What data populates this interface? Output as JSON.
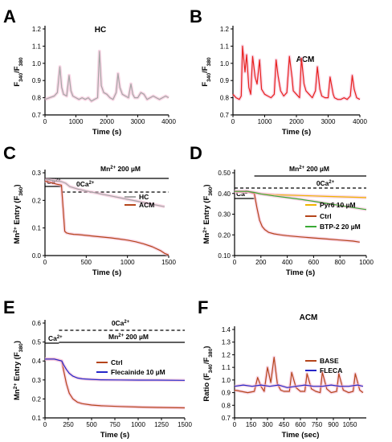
{
  "chart_data": [
    {
      "id": "A",
      "panel_label": "A",
      "type": "line",
      "title": "HC",
      "xlabel": "Time (s)",
      "ylabel": "F340/F380",
      "ylabel_parts": [
        "F",
        "340",
        "/F",
        "380"
      ],
      "xlim": [
        0,
        4000
      ],
      "ylim": [
        0.7,
        1.2
      ],
      "xticks": [
        0,
        1000,
        2000,
        3000,
        4000
      ],
      "yticks": [
        0.7,
        0.8,
        0.9,
        1.0,
        1.1,
        1.2
      ],
      "ytick_labels": [
        "0.7",
        "0.8",
        "0.9",
        "1.0",
        "1.1",
        "1.2"
      ],
      "grid": false,
      "series": [
        {
          "color": "#a6a6a6",
          "x": [
            0,
            150,
            300,
            400,
            480,
            540,
            600,
            700,
            780,
            840,
            900,
            1000,
            1100,
            1200,
            1300,
            1400,
            1500,
            1600,
            1700,
            1760,
            1820,
            1900,
            2000,
            2100,
            2200,
            2300,
            2360,
            2420,
            2500,
            2600,
            2700,
            2780,
            2840,
            2900,
            3000,
            3100,
            3200,
            3300,
            3400,
            3500,
            3600,
            3700,
            3800,
            3900,
            4000
          ],
          "y": [
            0.79,
            0.8,
            0.81,
            0.83,
            0.98,
            0.86,
            0.82,
            0.81,
            0.93,
            0.84,
            0.81,
            0.8,
            0.79,
            0.8,
            0.79,
            0.8,
            0.78,
            0.79,
            0.8,
            1.07,
            0.87,
            0.83,
            0.82,
            0.8,
            0.79,
            0.83,
            0.94,
            0.86,
            0.82,
            0.81,
            0.8,
            0.88,
            0.82,
            0.8,
            0.8,
            0.83,
            0.82,
            0.79,
            0.8,
            0.81,
            0.8,
            0.79,
            0.8,
            0.81,
            0.8
          ]
        }
      ]
    },
    {
      "id": "B",
      "panel_label": "B",
      "type": "line",
      "title": "ACM",
      "xlabel": "Time (s)",
      "ylabel": "F340/F380",
      "ylabel_parts": [
        "F",
        "340",
        "/F",
        "380"
      ],
      "xlim": [
        0,
        4000
      ],
      "ylim": [
        0.7,
        1.2
      ],
      "xticks": [
        0,
        1000,
        2000,
        3000,
        4000
      ],
      "yticks": [
        0.7,
        0.8,
        0.9,
        1.0,
        1.1,
        1.2
      ],
      "ytick_labels": [
        "0.7",
        "0.8",
        "0.9",
        "1.0",
        "1.1",
        "1.2"
      ],
      "grid": false,
      "series": [
        {
          "color": "#e8201c",
          "x": [
            0,
            100,
            200,
            260,
            300,
            380,
            430,
            500,
            560,
            620,
            700,
            760,
            840,
            900,
            1000,
            1100,
            1200,
            1300,
            1360,
            1420,
            1500,
            1600,
            1700,
            1780,
            1860,
            1900,
            2000,
            2100,
            2160,
            2240,
            2300,
            2400,
            2500,
            2600,
            2660,
            2740,
            2800,
            2900,
            3000,
            3060,
            3160,
            3200,
            3300,
            3400,
            3500,
            3600,
            3700,
            3760,
            3820,
            3900,
            4000
          ],
          "y": [
            0.82,
            0.8,
            0.79,
            0.81,
            1.1,
            0.95,
            1.05,
            0.86,
            0.82,
            1.04,
            0.92,
            0.88,
            1.02,
            0.85,
            0.82,
            0.81,
            0.8,
            0.82,
            1.02,
            0.93,
            0.84,
            0.81,
            0.83,
            1.04,
            0.92,
            0.84,
            0.82,
            0.8,
            1.03,
            0.88,
            0.84,
            0.82,
            0.8,
            0.84,
            0.98,
            0.85,
            0.81,
            0.8,
            0.8,
            0.92,
            0.82,
            0.8,
            0.79,
            0.79,
            0.8,
            0.79,
            0.81,
            0.93,
            0.85,
            0.8,
            0.79
          ]
        }
      ]
    },
    {
      "id": "C",
      "panel_label": "C",
      "type": "line",
      "title": "",
      "xlabel": "Time (s)",
      "ylabel": "Mn2+ Entry (F360)",
      "ylabel_parts": [
        "Mn",
        "2+",
        " Entry (F",
        "360",
        ")"
      ],
      "xlim": [
        0,
        1500
      ],
      "ylim": [
        0.0,
        0.3
      ],
      "xticks": [
        0,
        500,
        1000,
        1500
      ],
      "yticks": [
        0.0,
        0.1,
        0.2,
        0.3
      ],
      "ytick_labels": [
        "0.0",
        "0.1",
        "0.2",
        "0.3"
      ],
      "grid": false,
      "annotations": [
        {
          "text": "Mn2+ 200 µM",
          "parts": [
            "Mn",
            "2+",
            " 200 µM"
          ],
          "bar": [
            0,
            1500
          ],
          "style": "solid"
        },
        {
          "text": "0Ca2+",
          "parts": [
            "0Ca",
            "2+"
          ],
          "bar": [
            200,
            1500
          ],
          "style": "dashed"
        },
        {
          "text": "Ca2+",
          "parts": [
            "Ca",
            "2+"
          ],
          "bar": [
            0,
            200
          ],
          "style": "solid"
        }
      ],
      "legend_position": "right",
      "series": [
        {
          "name": "HC",
          "color": "#a6a6a6",
          "x": [
            0,
            50,
            100,
            150,
            200,
            250,
            300,
            400,
            500,
            600,
            700,
            800,
            900,
            1000,
            1100,
            1200,
            1300,
            1400,
            1450
          ],
          "y": [
            0.275,
            0.274,
            0.272,
            0.27,
            0.268,
            0.262,
            0.25,
            0.241,
            0.234,
            0.228,
            0.222,
            0.216,
            0.21,
            0.204,
            0.198,
            0.192,
            0.186,
            0.18,
            0.177
          ]
        },
        {
          "name": "ACM",
          "color": "#b5451b",
          "x": [
            0,
            50,
            100,
            150,
            200,
            220,
            240,
            260,
            300,
            350,
            400,
            500,
            600,
            700,
            800,
            900,
            1000,
            1100,
            1200,
            1300,
            1400,
            1450,
            1500
          ],
          "y": [
            0.27,
            0.266,
            0.262,
            0.258,
            0.255,
            0.17,
            0.088,
            0.082,
            0.079,
            0.077,
            0.076,
            0.073,
            0.07,
            0.067,
            0.064,
            0.06,
            0.056,
            0.05,
            0.042,
            0.032,
            0.018,
            0.008,
            0.002
          ]
        }
      ]
    },
    {
      "id": "D",
      "panel_label": "D",
      "type": "line",
      "title": "",
      "xlabel": "Time (s)",
      "ylabel": "Mn2+ Entry (F360)",
      "ylabel_parts": [
        "Mn",
        "2+",
        " Entry (F",
        "360",
        ")"
      ],
      "xlim": [
        0,
        1000
      ],
      "ylim": [
        0.1,
        0.5
      ],
      "xticks": [
        0,
        200,
        400,
        600,
        800,
        1000
      ],
      "yticks": [
        0.1,
        0.2,
        0.3,
        0.4,
        0.5
      ],
      "ytick_labels": [
        "0.10",
        "0.20",
        "0.30",
        "0.40",
        "0.50"
      ],
      "grid": false,
      "annotations": [
        {
          "text": "Mn2+ 200 µM",
          "parts": [
            "Mn",
            "2+",
            " 200 µM"
          ],
          "bar": [
            150,
            1000
          ],
          "style": "solid"
        },
        {
          "text": "0Ca2+",
          "parts": [
            "0Ca",
            "2+"
          ],
          "bar": [
            0,
            1000
          ],
          "style": "dashed"
        },
        {
          "text": "Ca2+",
          "parts": [
            "Ca",
            "2+"
          ],
          "bar": [
            0,
            150
          ],
          "style": "solid"
        }
      ],
      "legend_position": "right",
      "series": [
        {
          "name": "Pyr6 10 µM",
          "color": "#f0b400",
          "x": [
            0,
            100,
            150,
            200,
            300,
            400,
            500,
            600,
            700,
            800,
            900,
            1000
          ],
          "y": [
            0.408,
            0.408,
            0.404,
            0.398,
            0.394,
            0.392,
            0.39,
            0.388,
            0.386,
            0.384,
            0.382,
            0.38
          ]
        },
        {
          "name": "Ctrl",
          "color": "#b5451b",
          "x": [
            0,
            100,
            150,
            170,
            190,
            210,
            230,
            260,
            300,
            350,
            400,
            500,
            600,
            700,
            800,
            900,
            950
          ],
          "y": [
            0.41,
            0.41,
            0.4,
            0.33,
            0.27,
            0.24,
            0.225,
            0.212,
            0.205,
            0.2,
            0.196,
            0.19,
            0.185,
            0.18,
            0.175,
            0.17,
            0.165
          ]
        },
        {
          "name": "BTP-2 20 µM",
          "color": "#3aaa35",
          "x": [
            0,
            100,
            150,
            200,
            300,
            400,
            500,
            600,
            700,
            800,
            900,
            1000
          ],
          "y": [
            0.41,
            0.41,
            0.405,
            0.398,
            0.388,
            0.38,
            0.372,
            0.362,
            0.352,
            0.342,
            0.332,
            0.322
          ]
        }
      ]
    },
    {
      "id": "E",
      "panel_label": "E",
      "type": "line",
      "title": "",
      "xlabel": "Time (s)",
      "ylabel": "Mn2+ Entry (F380)",
      "ylabel_parts": [
        "Mn",
        "2+",
        " Entry (F",
        "380",
        ")"
      ],
      "xlim": [
        0,
        1500
      ],
      "ylim": [
        0.1,
        0.6
      ],
      "xticks": [
        0,
        250,
        500,
        750,
        1000,
        1250,
        1500
      ],
      "yticks": [
        0.1,
        0.2,
        0.3,
        0.4,
        0.5,
        0.6
      ],
      "ytick_labels": [
        "0.1",
        "0.2",
        "0.3",
        "0.4",
        "0.5",
        "0.6"
      ],
      "grid": false,
      "annotations": [
        {
          "text": "0Ca2+",
          "parts": [
            "0Ca",
            "2+"
          ],
          "bar": [
            150,
            1500
          ],
          "style": "dashed"
        },
        {
          "text": "Mn2+ 200 µM",
          "parts": [
            "Mn",
            "2+",
            " 200 µM"
          ],
          "bar": [
            150,
            1500
          ],
          "style": "solid"
        },
        {
          "text": "Ca2+",
          "parts": [
            "Ca",
            "2+"
          ],
          "bar": [
            0,
            150
          ],
          "style": "solid"
        }
      ],
      "legend_position": "right",
      "series": [
        {
          "name": "Ctrl",
          "color": "#b5451b",
          "x": [
            0,
            100,
            180,
            200,
            230,
            260,
            300,
            350,
            400,
            500,
            600,
            800,
            1000,
            1200,
            1500
          ],
          "y": [
            0.41,
            0.41,
            0.4,
            0.35,
            0.28,
            0.23,
            0.2,
            0.182,
            0.175,
            0.168,
            0.164,
            0.16,
            0.157,
            0.155,
            0.153
          ]
        },
        {
          "name": "Flecainide 10 µM",
          "color": "#2626c8",
          "x": [
            0,
            100,
            180,
            200,
            230,
            260,
            300,
            350,
            400,
            500,
            600,
            800,
            1000,
            1200,
            1500
          ],
          "y": [
            0.41,
            0.41,
            0.4,
            0.38,
            0.355,
            0.335,
            0.32,
            0.31,
            0.306,
            0.303,
            0.301,
            0.3,
            0.299,
            0.299,
            0.298
          ]
        }
      ]
    },
    {
      "id": "F",
      "panel_label": "F",
      "type": "line",
      "title": "ACM",
      "xlabel": "Time (sec)",
      "ylabel": "Ratio (F340/F380)",
      "ylabel_parts": [
        "Ratio (F",
        "340",
        "/F",
        "380",
        ")"
      ],
      "xlim": [
        0,
        1200
      ],
      "ylim": [
        0.7,
        1.4
      ],
      "xticks": [
        0,
        150,
        300,
        450,
        600,
        750,
        900,
        1050
      ],
      "yticks": [
        0.7,
        0.8,
        0.9,
        1.0,
        1.1,
        1.2,
        1.3,
        1.4
      ],
      "ytick_labels": [
        "0.7",
        "0.8",
        "0.9",
        "1.0",
        "1.1",
        "1.2",
        "1.3",
        "1.4"
      ],
      "grid": false,
      "legend_position": "top-right",
      "series": [
        {
          "name": "BASE",
          "color": "#b5451b",
          "x": [
            0,
            60,
            120,
            180,
            210,
            240,
            270,
            300,
            330,
            360,
            390,
            420,
            450,
            500,
            520,
            560,
            600,
            640,
            660,
            700,
            740,
            780,
            800,
            840,
            880,
            930,
            950,
            990,
            1040,
            1080,
            1100,
            1140,
            1170
          ],
          "y": [
            0.92,
            0.91,
            0.9,
            0.91,
            1.02,
            0.95,
            0.91,
            1.1,
            0.98,
            1.18,
            0.97,
            0.92,
            0.91,
            0.91,
            1.06,
            0.94,
            0.91,
            0.91,
            1.05,
            0.93,
            0.91,
            0.9,
            1.06,
            0.93,
            0.9,
            0.91,
            1.05,
            0.92,
            0.9,
            0.91,
            1.05,
            0.92,
            0.9
          ]
        },
        {
          "name": "FLECA",
          "color": "#2626c8",
          "x": [
            0,
            80,
            160,
            240,
            320,
            400,
            480,
            560,
            640,
            720,
            800,
            880,
            960,
            1040,
            1120,
            1170
          ],
          "y": [
            0.95,
            0.96,
            0.95,
            0.96,
            0.95,
            0.96,
            0.94,
            0.95,
            0.96,
            0.95,
            0.95,
            0.96,
            0.95,
            0.95,
            0.96,
            0.95
          ]
        }
      ]
    }
  ]
}
